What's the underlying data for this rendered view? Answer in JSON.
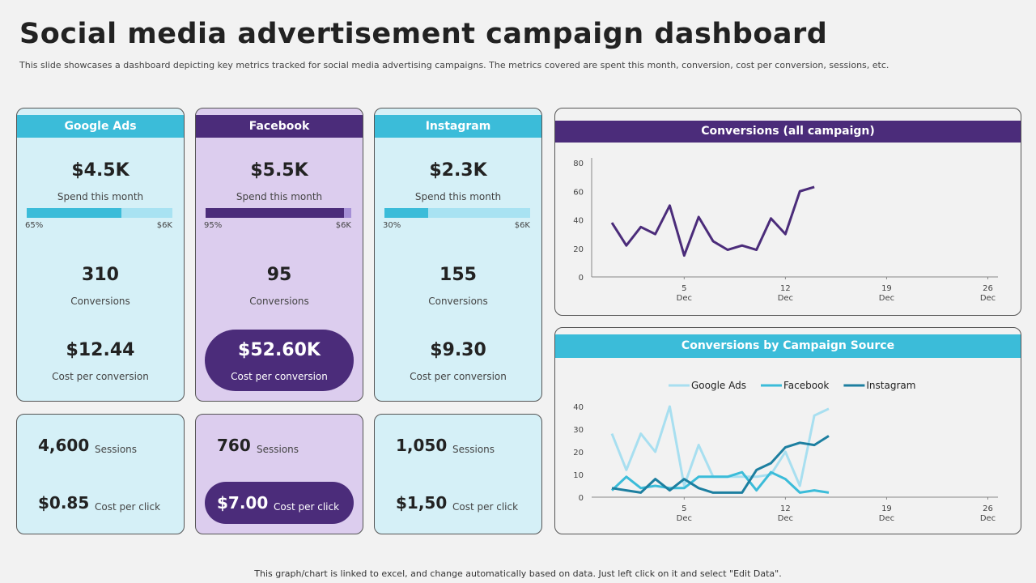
{
  "header": {
    "title": "Social media advertisement campaign dashboard",
    "subtitle": "This slide showcases a dashboard depicting key metrics tracked for social media advertising campaigns. The metrics covered are spent this month, conversion, cost per conversion, sessions, etc."
  },
  "cards": [
    {
      "name": "Google Ads",
      "theme": "blue",
      "spend": "$4.5K",
      "spend_label": "Spend this month",
      "progress": {
        "value": 65,
        "label": "65%"
      },
      "max_label": "$6K",
      "conversions": "310",
      "conversions_label": "Conversions",
      "cost_conversion": "$12.44",
      "cost_conversion_label": "Cost per conversion",
      "sessions": "4,600",
      "sessions_label": "Sessions",
      "cost_click": "$0.85",
      "cost_click_label": "Cost per click"
    },
    {
      "name": "Facebook",
      "theme": "purple",
      "spend": "$5.5K",
      "spend_label": "Spend this month",
      "progress": {
        "value": 95,
        "label": "95%"
      },
      "max_label": "$6K",
      "conversions": "95",
      "conversions_label": "Conversions",
      "cost_conversion": "$52.60K",
      "cost_conversion_label": "Cost per conversion",
      "sessions": "760",
      "sessions_label": "Sessions",
      "cost_click": "$7.00",
      "cost_click_label": "Cost per click"
    },
    {
      "name": "Instagram",
      "theme": "blue",
      "spend": "$2.3K",
      "spend_label": "Spend this month",
      "progress": {
        "value": 30,
        "label": "30%"
      },
      "max_label": "$6K",
      "conversions": "155",
      "conversions_label": "Conversions",
      "cost_conversion": "$9.30",
      "cost_conversion_label": "Cost per conversion",
      "sessions": "1,050",
      "sessions_label": "Sessions",
      "cost_click": "$1,50",
      "cost_click_label": "Cost per click"
    }
  ],
  "chart_data": [
    {
      "type": "line",
      "title": "Conversions (all campaign)",
      "header_color": "#4b2c7a",
      "x": [
        0,
        1,
        2,
        3,
        4,
        5,
        6,
        7,
        8,
        9,
        10,
        11,
        12,
        13,
        14
      ],
      "values": [
        38,
        22,
        35,
        30,
        50,
        15,
        42,
        25,
        19,
        22,
        19,
        41,
        30,
        60,
        63
      ],
      "color": "#4b2c7a",
      "xlim": [
        -1.4,
        26.7
      ],
      "xticks": [
        {
          "value": 5,
          "label": "5 Dec"
        },
        {
          "value": 12,
          "label": "12 Dec"
        },
        {
          "value": 19,
          "label": "19 Dec"
        },
        {
          "value": 26,
          "label": "26 Dec"
        }
      ],
      "ylim": [
        0,
        80
      ],
      "yticks": [
        0,
        20,
        40,
        60,
        80
      ]
    },
    {
      "type": "line",
      "title": "Conversions by Campaign Source",
      "header_color": "#3bbcd9",
      "legend": "top",
      "x": [
        0,
        1,
        2,
        3,
        4,
        5,
        6,
        7,
        8,
        9,
        10,
        11,
        12,
        13,
        14,
        15
      ],
      "series": [
        {
          "name": "Google Ads",
          "color": "#a8dff0",
          "values": [
            28,
            12,
            28,
            20,
            40,
            5,
            23,
            9,
            9,
            9,
            9,
            10,
            20,
            5,
            36,
            39
          ]
        },
        {
          "name": "Facebook",
          "color": "#3bbcd9",
          "values": [
            3,
            9,
            4,
            5,
            4,
            4,
            9,
            9,
            9,
            11,
            3,
            11,
            8,
            2,
            3,
            2
          ]
        },
        {
          "name": "Instagram",
          "color": "#1d7fa0",
          "values": [
            4,
            3,
            2,
            8,
            3,
            8,
            4,
            2,
            2,
            2,
            12,
            15,
            22,
            24,
            23,
            27
          ]
        }
      ],
      "xlim": [
        -1.4,
        26.7
      ],
      "xticks": [
        {
          "value": 5,
          "label": "5 Dec"
        },
        {
          "value": 12,
          "label": "12 Dec"
        },
        {
          "value": 19,
          "label": "19 Dec"
        },
        {
          "value": 26,
          "label": "26 Dec"
        }
      ],
      "ylim": [
        0,
        40
      ],
      "yticks": [
        0,
        10,
        20,
        30,
        40
      ]
    }
  ],
  "footer": "This graph/chart is linked to excel, and change automatically based on data. Just left click on it and select \"Edit Data\"."
}
